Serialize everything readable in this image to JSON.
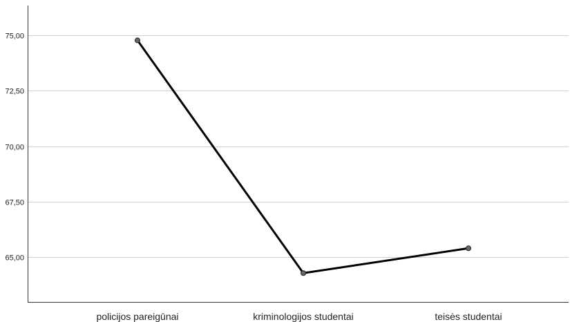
{
  "chart_data": {
    "type": "line",
    "title": "",
    "xlabel": "",
    "ylabel": "",
    "categories": [
      "policijos pareigūnai",
      "kriminologijos studentai",
      "teisės studentai"
    ],
    "series": [
      {
        "values": [
          74.77,
          64.28,
          65.4
        ]
      }
    ],
    "yticks": [
      "65,00",
      "67,50",
      "70,00",
      "72,50",
      "75,00"
    ],
    "ytick_values": [
      65,
      67.5,
      70,
      72.5,
      75
    ],
    "ylim": [
      62.98,
      76.34
    ],
    "grid": true,
    "legend": "none",
    "colors": {
      "line": "#000000",
      "marker_fill": "#666666",
      "marker_stroke": "#222222",
      "grid": "#cfcfcf",
      "axis": "#333333"
    }
  }
}
